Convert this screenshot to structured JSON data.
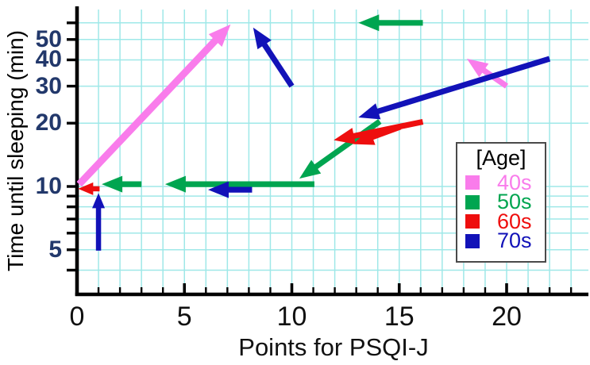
{
  "chart_data": {
    "type": "line",
    "subtype": "arrow-transition-plot",
    "title": "",
    "xlabel": "Points for PSQI-J",
    "ylabel": "Time until sleeping (min)",
    "x_axis": {
      "min": 0,
      "max": 23.8,
      "major_ticks": [
        0,
        5,
        10,
        15,
        20
      ],
      "minor_tick_step": 1
    },
    "y_axis": {
      "scale": "log",
      "min": 3.6,
      "max": 70,
      "labeled_ticks": [
        5,
        10,
        20,
        30,
        40,
        50
      ],
      "gridline_values": [
        4,
        5,
        6,
        7,
        8,
        9,
        10,
        20,
        30,
        40,
        50,
        60
      ]
    },
    "grid": true,
    "grid_color": "#9fe8e8",
    "axis_color": "#000000",
    "y_tick_label_color": "#22386b",
    "x_tick_label_color": "#101010",
    "legend": {
      "title": "[Age]",
      "position": "right-middle",
      "entries": [
        {
          "label": "40s",
          "color": "#f97ceb"
        },
        {
          "label": "50s",
          "color": "#00a550"
        },
        {
          "label": "60s",
          "color": "#ee0e0e"
        },
        {
          "label": "70s",
          "color": "#1212b8"
        }
      ]
    },
    "series": [
      {
        "name": "40s",
        "color": "#f97ceb",
        "arrows": [
          {
            "from": [
              0.1,
              10.25
            ],
            "to": [
              7.15,
              59.0
            ],
            "width": 9,
            "head": [
              28,
              23
            ]
          },
          {
            "from": [
              20.0,
              30.0
            ],
            "to": [
              18.15,
              40.5
            ]
          }
        ]
      },
      {
        "name": "50s",
        "color": "#00a550",
        "arrows": [
          {
            "from": [
              16.1,
              60.0
            ],
            "to": [
              13.1,
              60.0
            ]
          },
          {
            "from": [
              14.1,
              20.4
            ],
            "to": [
              10.35,
              10.9
            ]
          },
          {
            "from": [
              11.05,
              10.25
            ],
            "to": [
              4.1,
              10.25
            ]
          },
          {
            "from": [
              3.0,
              10.25
            ],
            "to": [
              1.15,
              10.25
            ]
          }
        ]
      },
      {
        "name": "60s",
        "color": "#ee0e0e",
        "arrows": [
          {
            "from": [
              16.1,
              20.3
            ],
            "to": [
              11.95,
              16.6
            ]
          },
          {
            "from": [
              15.05,
              19.2
            ],
            "to": [
              12.85,
              15.9
            ]
          },
          {
            "from": [
              1.05,
              9.75
            ],
            "to": [
              0.05,
              9.75
            ],
            "size": "small"
          }
        ]
      },
      {
        "name": "70s",
        "color": "#1212b8",
        "arrows": [
          {
            "from": [
              1.0,
              4.95
            ],
            "to": [
              1.0,
              9.3
            ],
            "size": "small"
          },
          {
            "from": [
              8.15,
              9.65
            ],
            "to": [
              6.1,
              9.65
            ]
          },
          {
            "from": [
              10.0,
              30.0
            ],
            "to": [
              8.2,
              57.0
            ]
          },
          {
            "from": [
              22.0,
              40.5
            ],
            "to": [
              13.1,
              21.3
            ]
          }
        ]
      }
    ]
  }
}
